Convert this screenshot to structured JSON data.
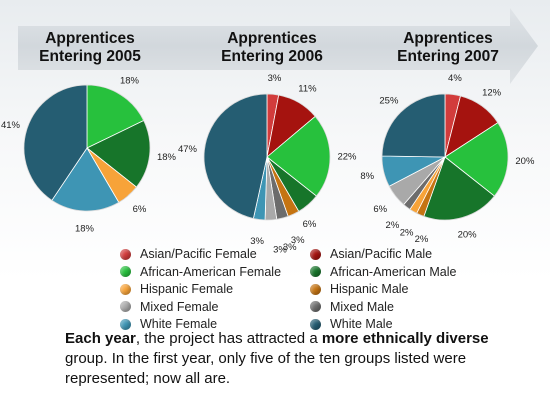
{
  "colors": {
    "Asian/Pacific Female": "#d23c3c",
    "Asian/Pacific Male": "#a5130f",
    "African-American Female": "#27c13d",
    "African-American Male": "#17752a",
    "Hispanic Female": "#f7a339",
    "Hispanic Male": "#c57412",
    "Mixed Female": "#a9a9a9",
    "Mixed Male": "#6c6c6c",
    "White Female": "#3e95b4",
    "White Male": "#255d72"
  },
  "legend": [
    [
      "Asian/Pacific Female",
      "Asian/Pacific Male"
    ],
    [
      "African-American Female",
      "African-American Male"
    ],
    [
      "Hispanic Female",
      "Hispanic Male"
    ],
    [
      "Mixed Female",
      "Mixed Male"
    ],
    [
      "White Female",
      "White Male"
    ]
  ],
  "caption": {
    "p1_bold": "Each year",
    "p2": ", the project has attracted a ",
    "p3_bold": "more ethnically diverse",
    "p4": " group. In the first year, only five of the ten groups listed were represented; now all are."
  },
  "chart_data": [
    {
      "type": "pie",
      "title_line1": "Apprentices",
      "title_line2": "Entering 2005",
      "slices": [
        {
          "group": "African-American Female",
          "value": 18,
          "label": "18%"
        },
        {
          "group": "African-American Male",
          "value": 18,
          "label": "18%"
        },
        {
          "group": "Hispanic Female",
          "value": 6,
          "label": "6%"
        },
        {
          "group": "White Female",
          "value": 18,
          "label": "18%"
        },
        {
          "group": "White Male",
          "value": 41,
          "label": "41%"
        }
      ]
    },
    {
      "type": "pie",
      "title_line1": "Apprentices",
      "title_line2": "Entering 2006",
      "slices": [
        {
          "group": "Asian/Pacific Female",
          "value": 3,
          "label": "3%"
        },
        {
          "group": "Asian/Pacific Male",
          "value": 11,
          "label": "11%"
        },
        {
          "group": "African-American Female",
          "value": 22,
          "label": "22%"
        },
        {
          "group": "African-American Male",
          "value": 6,
          "label": "6%"
        },
        {
          "group": "Hispanic Male",
          "value": 3,
          "label": "3%"
        },
        {
          "group": "Mixed Male",
          "value": 3,
          "label": "3%"
        },
        {
          "group": "Mixed Female",
          "value": 3,
          "label": "3%"
        },
        {
          "group": "White Female",
          "value": 3,
          "label": "3%"
        },
        {
          "group": "White Male",
          "value": 47,
          "label": "47%"
        }
      ]
    },
    {
      "type": "pie",
      "title_line1": "Apprentices",
      "title_line2": "Entering 2007",
      "slices": [
        {
          "group": "Asian/Pacific Female",
          "value": 4,
          "label": "4%"
        },
        {
          "group": "Asian/Pacific Male",
          "value": 12,
          "label": "12%"
        },
        {
          "group": "African-American Female",
          "value": 20,
          "label": "20%"
        },
        {
          "group": "African-American Male",
          "value": 20,
          "label": "20%"
        },
        {
          "group": "Hispanic Male",
          "value": 2,
          "label": "2%"
        },
        {
          "group": "Hispanic Female",
          "value": 2,
          "label": "2%"
        },
        {
          "group": "Mixed Male",
          "value": 2,
          "label": "2%"
        },
        {
          "group": "Mixed Female",
          "value": 6,
          "label": "6%"
        },
        {
          "group": "White Female",
          "value": 8,
          "label": "8%"
        },
        {
          "group": "White Male",
          "value": 25,
          "label": "25%"
        }
      ]
    }
  ]
}
